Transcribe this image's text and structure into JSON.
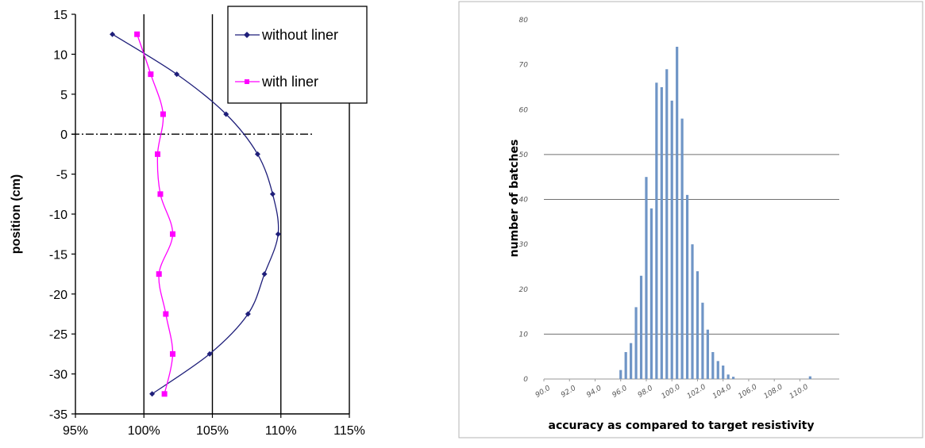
{
  "chart_data": [
    {
      "type": "line",
      "title": "",
      "xlabel": "",
      "ylabel": "position (cm)",
      "xlim": [
        95,
        115
      ],
      "ylim": [
        -35,
        15
      ],
      "x_ticks": [
        "95%",
        "100%",
        "105%",
        "110%",
        "115%"
      ],
      "y_ticks": [
        "15",
        "10",
        "5",
        "0",
        "-5",
        "-10",
        "-15",
        "-20",
        "-25",
        "-30",
        "-35"
      ],
      "grid": "vertical",
      "reference_line_y": 0,
      "legend": "top-right",
      "series": [
        {
          "name": "without liner",
          "color": "#1f1f7a",
          "marker": "diamond",
          "points": [
            {
              "x": 97.7,
              "y": 12.5
            },
            {
              "x": 102.4,
              "y": 7.5
            },
            {
              "x": 106.0,
              "y": 2.5
            },
            {
              "x": 108.3,
              "y": -2.5
            },
            {
              "x": 109.4,
              "y": -7.5
            },
            {
              "x": 109.8,
              "y": -12.5
            },
            {
              "x": 108.8,
              "y": -17.5
            },
            {
              "x": 107.6,
              "y": -22.5
            },
            {
              "x": 104.8,
              "y": -27.5
            },
            {
              "x": 100.6,
              "y": -32.5
            }
          ]
        },
        {
          "name": "with liner",
          "color": "#ff00ff",
          "marker": "square",
          "points": [
            {
              "x": 99.5,
              "y": 12.5
            },
            {
              "x": 100.5,
              "y": 7.5
            },
            {
              "x": 101.4,
              "y": 2.5
            },
            {
              "x": 101.0,
              "y": -2.5
            },
            {
              "x": 101.2,
              "y": -7.5
            },
            {
              "x": 102.1,
              "y": -12.5
            },
            {
              "x": 101.1,
              "y": -17.5
            },
            {
              "x": 101.6,
              "y": -22.5
            },
            {
              "x": 102.1,
              "y": -27.5
            },
            {
              "x": 101.5,
              "y": -32.5
            }
          ]
        }
      ]
    },
    {
      "type": "bar",
      "title": "",
      "xlabel": "accuracy as compared to target resistivity",
      "ylabel": "number of batches",
      "ylim": [
        0,
        80
      ],
      "y_ticks": [
        "0",
        "10",
        "20",
        "30",
        "40",
        "50",
        "60",
        "70",
        "80"
      ],
      "x_ticks": [
        "90.0",
        "92.0",
        "94.0",
        "96.0",
        "98.0",
        "100.0",
        "102.0",
        "104.0",
        "106.0",
        "108.0",
        "110.0"
      ],
      "xlim": [
        90,
        111.4
      ],
      "bar_color": "#6f95c6",
      "grid": "horizontal",
      "x": [
        96.0,
        96.4,
        96.8,
        97.2,
        97.6,
        98.0,
        98.4,
        98.8,
        99.2,
        99.6,
        100.0,
        100.4,
        100.8,
        101.2,
        101.6,
        102.0,
        102.4,
        102.8,
        103.2,
        103.6,
        104.0,
        104.4,
        104.8,
        105.2,
        105.6,
        106.0,
        106.4,
        110.8
      ],
      "values": [
        2,
        6,
        8,
        16,
        23,
        45,
        38,
        66,
        65,
        69,
        62,
        74,
        58,
        41,
        30,
        24,
        17,
        11,
        6,
        4,
        3,
        1,
        0.5,
        0,
        0,
        0,
        0,
        0.6
      ]
    }
  ]
}
